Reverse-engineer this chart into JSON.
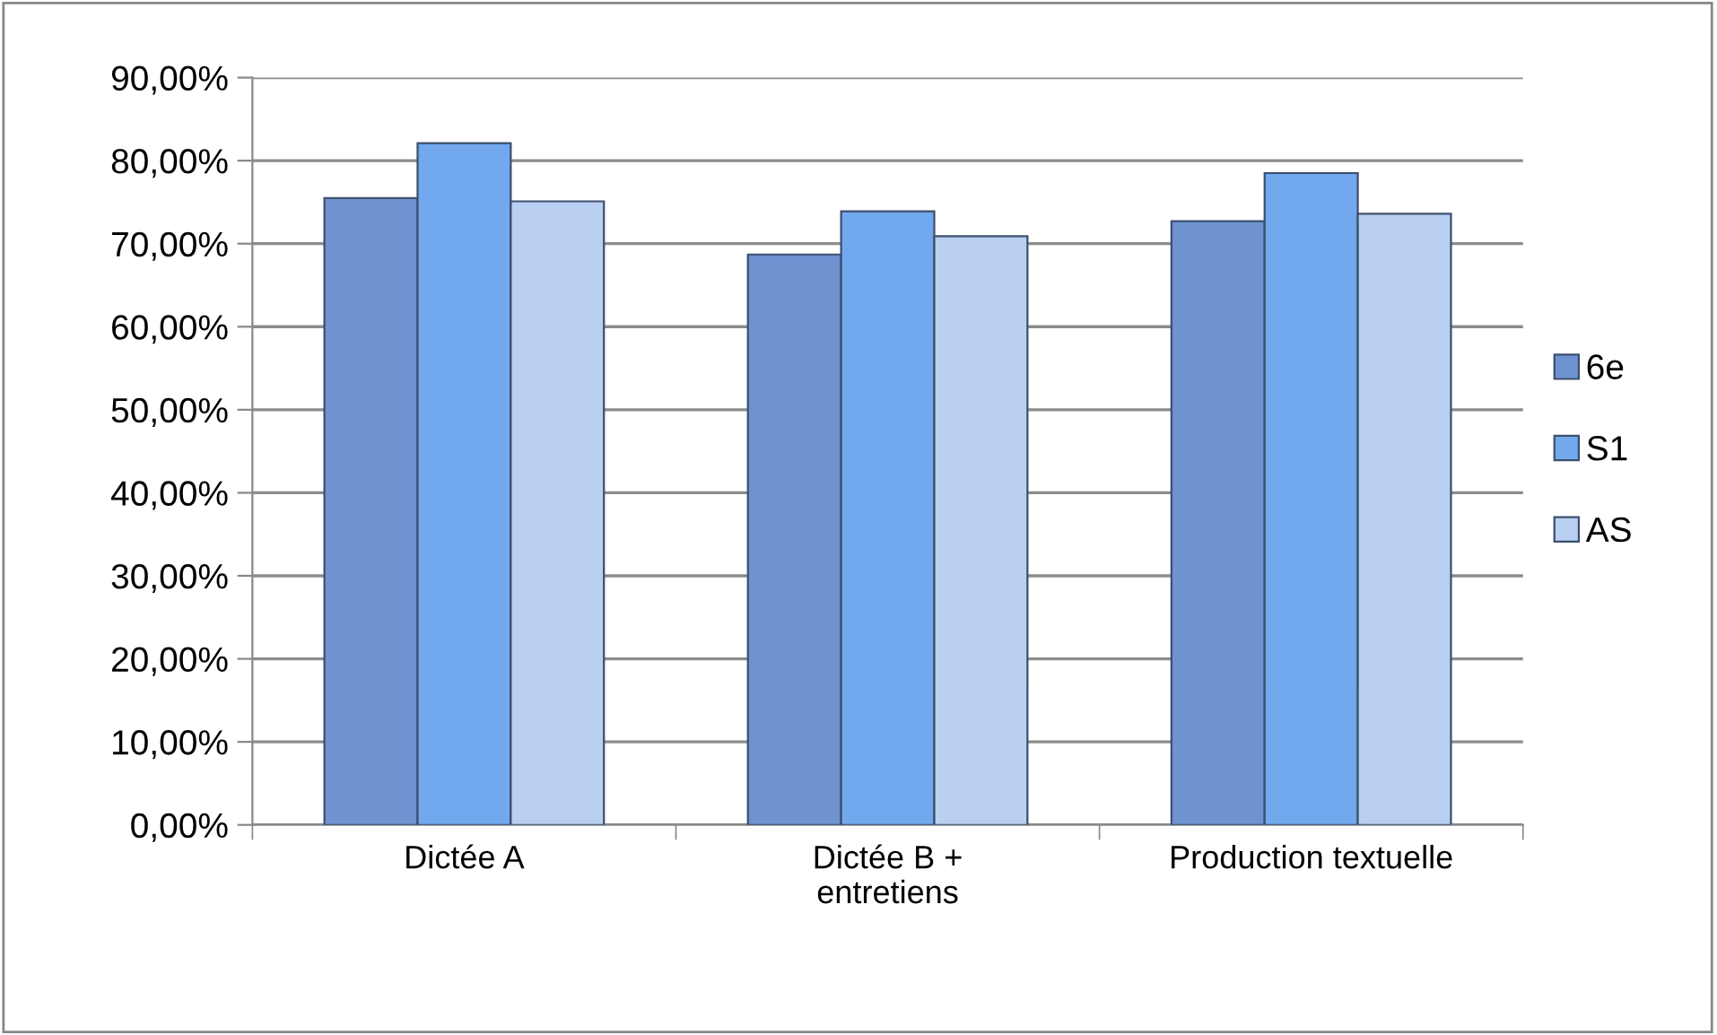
{
  "chart_data": {
    "type": "bar",
    "categories": [
      "Dictée A",
      "Dictée B +\nentretiens",
      "Production textuelle"
    ],
    "series": [
      {
        "name": "6e",
        "color": "#6f93d0",
        "values": [
          75.5,
          68.7,
          72.7
        ]
      },
      {
        "name": "S1",
        "color": "#72a8ee",
        "values": [
          82.1,
          73.9,
          78.5
        ]
      },
      {
        "name": "AS",
        "color": "#b9d0f2",
        "values": [
          75.1,
          70.9,
          73.6
        ]
      }
    ],
    "ylim": [
      0,
      90
    ],
    "yticks": [
      {
        "value": 0,
        "label": "0,00%"
      },
      {
        "value": 10,
        "label": "10,00%"
      },
      {
        "value": 20,
        "label": "20,00%"
      },
      {
        "value": 30,
        "label": "30,00%"
      },
      {
        "value": 40,
        "label": "40,00%"
      },
      {
        "value": 50,
        "label": "50,00%"
      },
      {
        "value": 60,
        "label": "60,00%"
      },
      {
        "value": 70,
        "label": "70,00%"
      },
      {
        "value": 80,
        "label": "80,00%"
      },
      {
        "value": 90,
        "label": "90,00%"
      }
    ],
    "grid": "y",
    "legend": "right"
  }
}
